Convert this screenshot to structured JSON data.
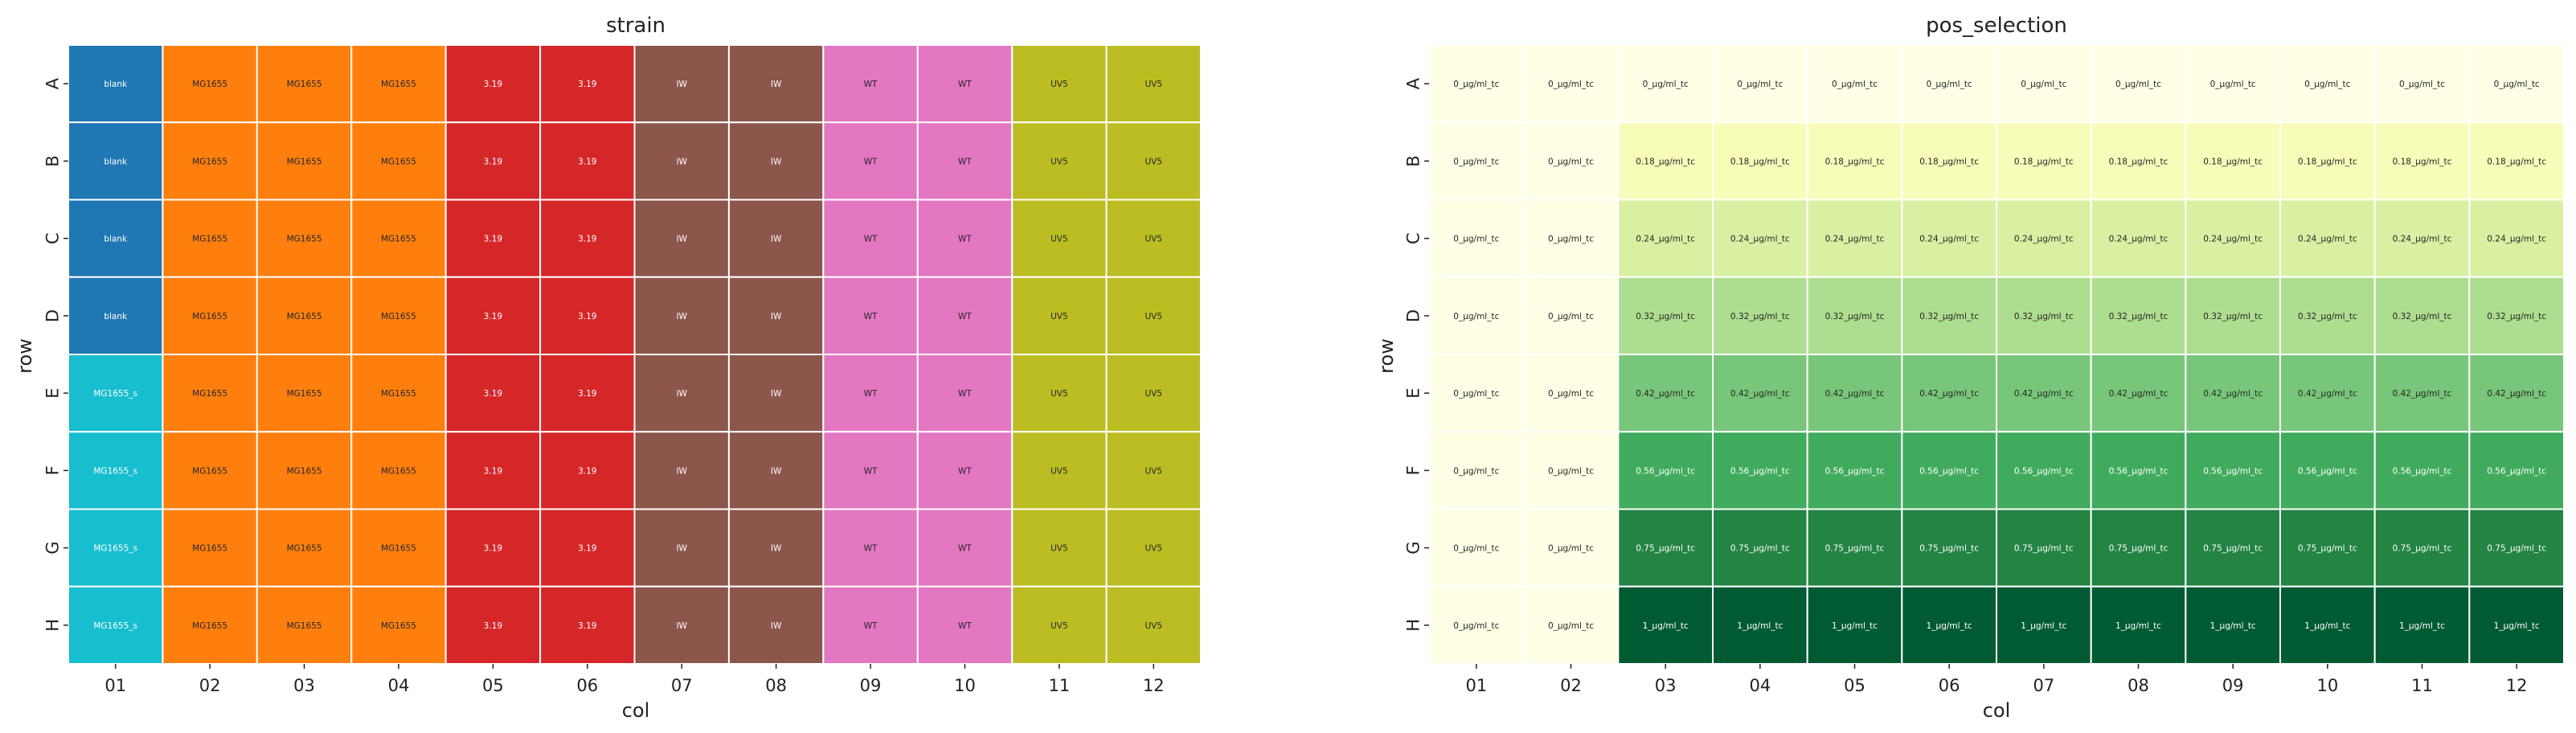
{
  "chart_data": [
    {
      "type": "heatmap",
      "title": "strain",
      "xlabel": "col",
      "ylabel": "row",
      "rows": [
        "A",
        "B",
        "C",
        "D",
        "E",
        "F",
        "G",
        "H"
      ],
      "cols": [
        "01",
        "02",
        "03",
        "04",
        "05",
        "06",
        "07",
        "08",
        "09",
        "10",
        "11",
        "12"
      ],
      "palette": {
        "blank": "#1f77b4",
        "MG1655_s": "#17becf",
        "MG1655": "#ff7f0e",
        "3.19": "#d62728",
        "IW": "#8c564b",
        "WT": "#e377c2",
        "UV5": "#bcbd22"
      },
      "values": [
        [
          "blank",
          "MG1655",
          "MG1655",
          "MG1655",
          "3.19",
          "3.19",
          "IW",
          "IW",
          "WT",
          "WT",
          "UV5",
          "UV5"
        ],
        [
          "blank",
          "MG1655",
          "MG1655",
          "MG1655",
          "3.19",
          "3.19",
          "IW",
          "IW",
          "WT",
          "WT",
          "UV5",
          "UV5"
        ],
        [
          "blank",
          "MG1655",
          "MG1655",
          "MG1655",
          "3.19",
          "3.19",
          "IW",
          "IW",
          "WT",
          "WT",
          "UV5",
          "UV5"
        ],
        [
          "blank",
          "MG1655",
          "MG1655",
          "MG1655",
          "3.19",
          "3.19",
          "IW",
          "IW",
          "WT",
          "WT",
          "UV5",
          "UV5"
        ],
        [
          "MG1655_s",
          "MG1655",
          "MG1655",
          "MG1655",
          "3.19",
          "3.19",
          "IW",
          "IW",
          "WT",
          "WT",
          "UV5",
          "UV5"
        ],
        [
          "MG1655_s",
          "MG1655",
          "MG1655",
          "MG1655",
          "3.19",
          "3.19",
          "IW",
          "IW",
          "WT",
          "WT",
          "UV5",
          "UV5"
        ],
        [
          "MG1655_s",
          "MG1655",
          "MG1655",
          "MG1655",
          "3.19",
          "3.19",
          "IW",
          "IW",
          "WT",
          "WT",
          "UV5",
          "UV5"
        ],
        [
          "MG1655_s",
          "MG1655",
          "MG1655",
          "MG1655",
          "3.19",
          "3.19",
          "IW",
          "IW",
          "WT",
          "WT",
          "UV5",
          "UV5"
        ]
      ]
    },
    {
      "type": "heatmap",
      "title": "pos_selection",
      "xlabel": "col",
      "ylabel": "row",
      "rows": [
        "A",
        "B",
        "C",
        "D",
        "E",
        "F",
        "G",
        "H"
      ],
      "cols": [
        "01",
        "02",
        "03",
        "04",
        "05",
        "06",
        "07",
        "08",
        "09",
        "10",
        "11",
        "12"
      ],
      "palette": {
        "0_µg/ml_tc": "#ffffe5",
        "0.18_µg/ml_tc": "#f7fcb9",
        "0.24_µg/ml_tc": "#d9f0a3",
        "0.32_µg/ml_tc": "#addd8e",
        "0.42_µg/ml_tc": "#78c679",
        "0.56_µg/ml_tc": "#41ab5d",
        "0.75_µg/ml_tc": "#238443",
        "1_µg/ml_tc": "#005a32"
      },
      "values": [
        [
          "0_µg/ml_tc",
          "0_µg/ml_tc",
          "0_µg/ml_tc",
          "0_µg/ml_tc",
          "0_µg/ml_tc",
          "0_µg/ml_tc",
          "0_µg/ml_tc",
          "0_µg/ml_tc",
          "0_µg/ml_tc",
          "0_µg/ml_tc",
          "0_µg/ml_tc",
          "0_µg/ml_tc"
        ],
        [
          "0_µg/ml_tc",
          "0_µg/ml_tc",
          "0.18_µg/ml_tc",
          "0.18_µg/ml_tc",
          "0.18_µg/ml_tc",
          "0.18_µg/ml_tc",
          "0.18_µg/ml_tc",
          "0.18_µg/ml_tc",
          "0.18_µg/ml_tc",
          "0.18_µg/ml_tc",
          "0.18_µg/ml_tc",
          "0.18_µg/ml_tc"
        ],
        [
          "0_µg/ml_tc",
          "0_µg/ml_tc",
          "0.24_µg/ml_tc",
          "0.24_µg/ml_tc",
          "0.24_µg/ml_tc",
          "0.24_µg/ml_tc",
          "0.24_µg/ml_tc",
          "0.24_µg/ml_tc",
          "0.24_µg/ml_tc",
          "0.24_µg/ml_tc",
          "0.24_µg/ml_tc",
          "0.24_µg/ml_tc"
        ],
        [
          "0_µg/ml_tc",
          "0_µg/ml_tc",
          "0.32_µg/ml_tc",
          "0.32_µg/ml_tc",
          "0.32_µg/ml_tc",
          "0.32_µg/ml_tc",
          "0.32_µg/ml_tc",
          "0.32_µg/ml_tc",
          "0.32_µg/ml_tc",
          "0.32_µg/ml_tc",
          "0.32_µg/ml_tc",
          "0.32_µg/ml_tc"
        ],
        [
          "0_µg/ml_tc",
          "0_µg/ml_tc",
          "0.42_µg/ml_tc",
          "0.42_µg/ml_tc",
          "0.42_µg/ml_tc",
          "0.42_µg/ml_tc",
          "0.42_µg/ml_tc",
          "0.42_µg/ml_tc",
          "0.42_µg/ml_tc",
          "0.42_µg/ml_tc",
          "0.42_µg/ml_tc",
          "0.42_µg/ml_tc"
        ],
        [
          "0_µg/ml_tc",
          "0_µg/ml_tc",
          "0.56_µg/ml_tc",
          "0.56_µg/ml_tc",
          "0.56_µg/ml_tc",
          "0.56_µg/ml_tc",
          "0.56_µg/ml_tc",
          "0.56_µg/ml_tc",
          "0.56_µg/ml_tc",
          "0.56_µg/ml_tc",
          "0.56_µg/ml_tc",
          "0.56_µg/ml_tc"
        ],
        [
          "0_µg/ml_tc",
          "0_µg/ml_tc",
          "0.75_µg/ml_tc",
          "0.75_µg/ml_tc",
          "0.75_µg/ml_tc",
          "0.75_µg/ml_tc",
          "0.75_µg/ml_tc",
          "0.75_µg/ml_tc",
          "0.75_µg/ml_tc",
          "0.75_µg/ml_tc",
          "0.75_µg/ml_tc",
          "0.75_µg/ml_tc"
        ],
        [
          "0_µg/ml_tc",
          "0_µg/ml_tc",
          "1_µg/ml_tc",
          "1_µg/ml_tc",
          "1_µg/ml_tc",
          "1_µg/ml_tc",
          "1_µg/ml_tc",
          "1_µg/ml_tc",
          "1_µg/ml_tc",
          "1_µg/ml_tc",
          "1_µg/ml_tc",
          "1_µg/ml_tc"
        ]
      ]
    }
  ]
}
